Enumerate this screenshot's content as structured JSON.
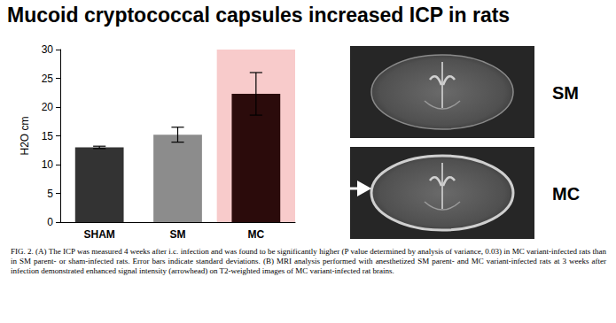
{
  "chart_data": {
    "type": "bar",
    "title": "Mucoid cryptococcal capsules increased ICP in rats",
    "y_label": "H2O cm",
    "categories": [
      "SHAM",
      "SM",
      "MC"
    ],
    "values": [
      13,
      15.2,
      22.3
    ],
    "errors": [
      0.2,
      1.3,
      3.7
    ],
    "colors": [
      "#333333",
      "#8c8c8c",
      "#2b0b0b"
    ],
    "ylim": [
      0,
      30
    ],
    "yticks": [
      0,
      5,
      10,
      15,
      20,
      25,
      30
    ],
    "grid": false
  },
  "figure": {
    "image_labels": [
      "SM",
      "MC"
    ],
    "caption": "FIG. 2. (A) The ICP was measured 4 weeks after i.c. infection and was found to be significantly higher (P value determined by analysis of variance, 0.03) in MC variant-infected rats than in SM parent- or sham-infected rats. Error bars indicate standard deviations. (B) MRI analysis performed with anesthetized SM parent- and MC variant-infected rats at 3 weeks after infection demonstrated enhanced signal intensity (arrowhead) on T2-weighted images of MC variant-infected rat brains."
  }
}
